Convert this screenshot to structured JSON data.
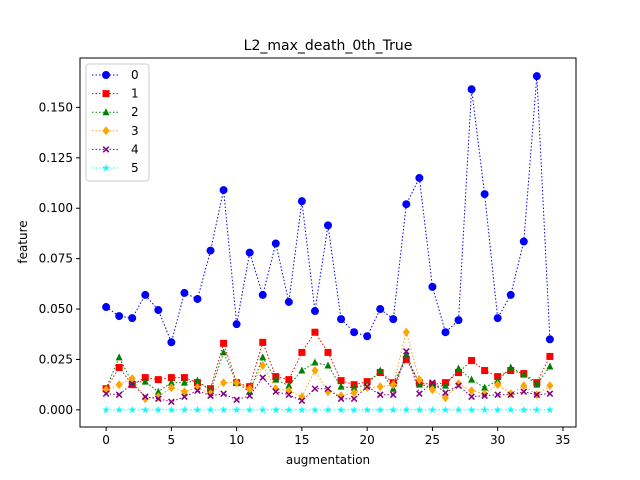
{
  "chart_data": {
    "type": "line",
    "title": "L2_max_death_0th_True",
    "xlabel": "augmentation",
    "ylabel": "feature",
    "xlim": [
      -2.0,
      36.0
    ],
    "ylim": [
      -0.0085,
      0.1745
    ],
    "xticks": [
      0,
      5,
      10,
      15,
      20,
      25,
      30,
      35
    ],
    "yticks": [
      0.0,
      0.025,
      0.05,
      0.075,
      0.1,
      0.125,
      0.15
    ],
    "ytick_labels": [
      "0.000",
      "0.025",
      "0.050",
      "0.075",
      "0.100",
      "0.125",
      "0.150"
    ],
    "legend_position": "top-left",
    "grid": false,
    "line_style": "dotted",
    "x": [
      0,
      1,
      2,
      3,
      4,
      5,
      6,
      7,
      8,
      9,
      10,
      11,
      12,
      13,
      14,
      15,
      16,
      17,
      18,
      19,
      20,
      21,
      22,
      23,
      24,
      25,
      26,
      27,
      28,
      29,
      30,
      31,
      32,
      33,
      34
    ],
    "series": [
      {
        "name": "0",
        "color": "#0000ff",
        "marker": "circle",
        "values": [
          0.051,
          0.0465,
          0.0455,
          0.057,
          0.0495,
          0.0335,
          0.058,
          0.055,
          0.079,
          0.109,
          0.0425,
          0.078,
          0.057,
          0.0825,
          0.0535,
          0.1035,
          0.049,
          0.0915,
          0.045,
          0.0385,
          0.0365,
          0.05,
          0.045,
          0.102,
          0.115,
          0.061,
          0.0385,
          0.0445,
          0.159,
          0.107,
          0.0455,
          0.057,
          0.0835,
          0.1655,
          0.035
        ]
      },
      {
        "name": "1",
        "color": "#ff0000",
        "marker": "square",
        "values": [
          0.0105,
          0.021,
          0.0125,
          0.016,
          0.015,
          0.016,
          0.016,
          0.0135,
          0.0105,
          0.033,
          0.0135,
          0.0115,
          0.0335,
          0.0165,
          0.015,
          0.0285,
          0.0385,
          0.0285,
          0.0145,
          0.0125,
          0.014,
          0.0185,
          0.0135,
          0.025,
          0.0135,
          0.0125,
          0.0135,
          0.0185,
          0.0245,
          0.0195,
          0.0165,
          0.0195,
          0.018,
          0.0135,
          0.0265
        ]
      },
      {
        "name": "2",
        "color": "#008000",
        "marker": "triangle",
        "values": [
          0.0105,
          0.026,
          0.0135,
          0.014,
          0.009,
          0.0135,
          0.0135,
          0.0145,
          0.0095,
          0.0285,
          0.0135,
          0.009,
          0.026,
          0.015,
          0.012,
          0.0195,
          0.0235,
          0.022,
          0.0115,
          0.011,
          0.0125,
          0.0195,
          0.0105,
          0.0275,
          0.0125,
          0.0115,
          0.012,
          0.0205,
          0.015,
          0.011,
          0.0145,
          0.021,
          0.0175,
          0.0125,
          0.0215
        ]
      },
      {
        "name": "3",
        "color": "#ffa500",
        "marker": "diamond",
        "values": [
          0.01,
          0.0125,
          0.0155,
          0.0055,
          0.0065,
          0.011,
          0.009,
          0.011,
          0.008,
          0.0135,
          0.0135,
          0.0105,
          0.022,
          0.0105,
          0.0095,
          0.0065,
          0.0195,
          0.009,
          0.007,
          0.0085,
          0.011,
          0.0115,
          0.0125,
          0.0385,
          0.015,
          0.01,
          0.006,
          0.013,
          0.0095,
          0.008,
          0.0125,
          0.008,
          0.012,
          0.0075,
          0.012
        ]
      },
      {
        "name": "4",
        "color": "#800080",
        "marker": "x",
        "values": [
          0.008,
          0.0075,
          0.013,
          0.0065,
          0.0055,
          0.004,
          0.0065,
          0.0095,
          0.007,
          0.008,
          0.005,
          0.007,
          0.016,
          0.009,
          0.0075,
          0.0045,
          0.0105,
          0.0105,
          0.0055,
          0.0055,
          0.0115,
          0.0075,
          0.0075,
          0.029,
          0.008,
          0.0135,
          0.0085,
          0.012,
          0.0065,
          0.007,
          0.0075,
          0.0075,
          0.009,
          0.0075,
          0.008
        ]
      },
      {
        "name": "5",
        "color": "#00ffff",
        "marker": "star",
        "values": [
          0.0,
          0.0,
          0.0,
          0.0,
          0.0,
          0.0,
          0.0,
          0.0,
          0.0,
          0.0,
          0.0,
          0.0,
          0.0,
          0.0,
          0.0,
          0.0,
          0.0,
          0.0,
          0.0,
          0.0,
          0.0,
          0.0,
          0.0,
          0.0,
          0.0,
          0.0,
          0.0,
          0.0,
          0.0,
          0.0,
          0.0,
          0.0,
          0.0,
          0.0,
          0.0
        ]
      }
    ]
  }
}
